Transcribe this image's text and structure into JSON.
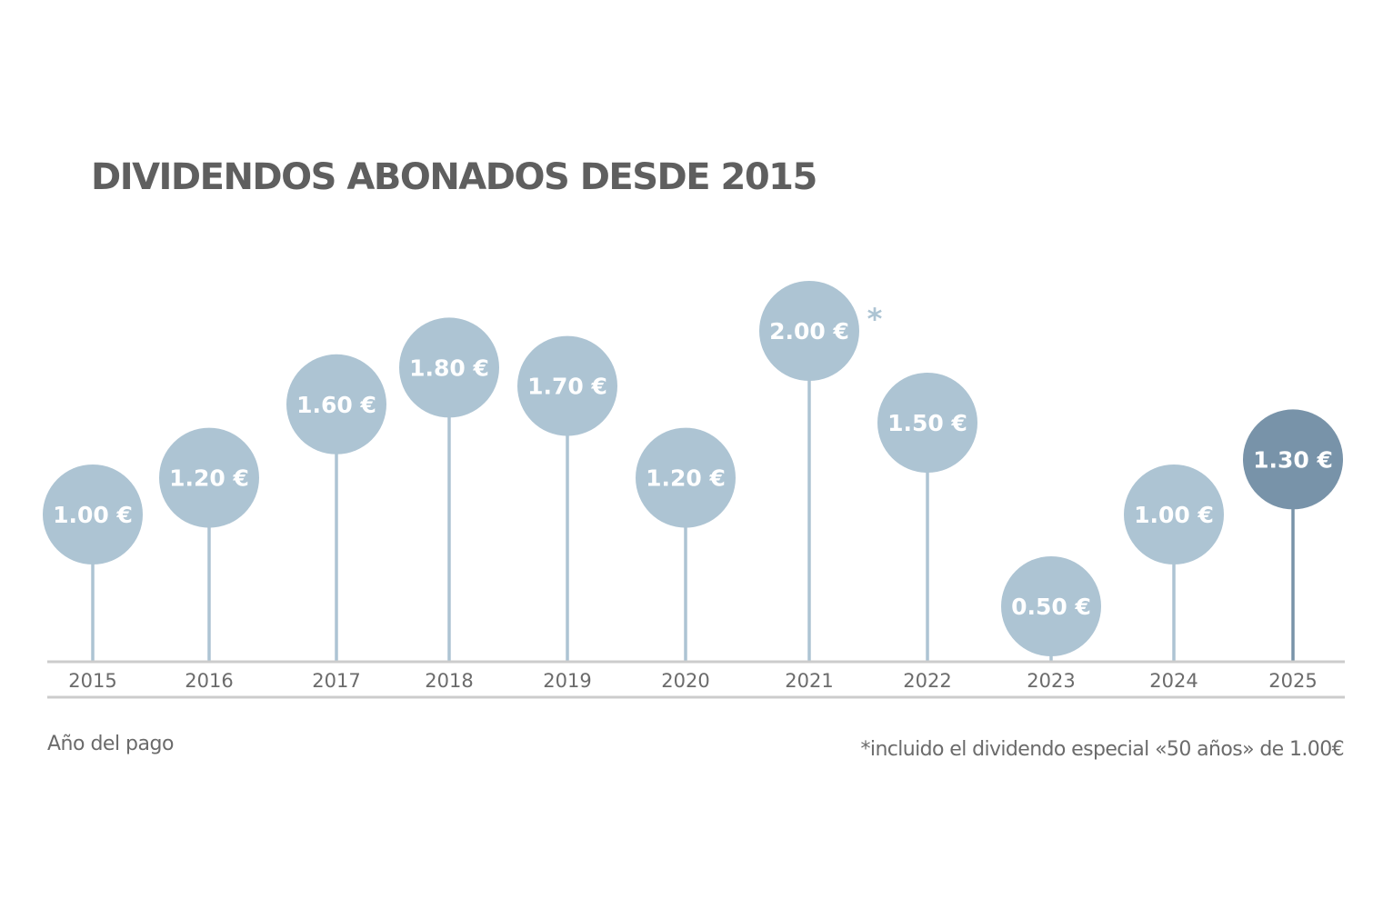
{
  "colors": {
    "bubble": "#adc4d3",
    "bubble_highlight": "#7893a9",
    "axis": "#cccccc",
    "text_dark": "#5f5f5f",
    "text_gray": "#6b6b6b",
    "asterisk": "#adc4d3"
  },
  "chart_data": {
    "type": "scatter",
    "title": "DIVIDENDOS ABONADOS DESDE 2015",
    "xlabel": "Año del pago",
    "ylabel": "",
    "categories": [
      "2015",
      "2016",
      "2017",
      "2018",
      "2019",
      "2020",
      "2021",
      "2022",
      "2023",
      "2024",
      "2025"
    ],
    "values": [
      1.0,
      1.2,
      1.6,
      1.8,
      1.7,
      1.2,
      2.0,
      1.5,
      0.5,
      1.0,
      1.3
    ],
    "value_labels": [
      "1.00 €",
      "1.20 €",
      "1.60 €",
      "1.80 €",
      "1.70 €",
      "1.20 €",
      "2.00 €",
      "1.50 €",
      "0.50 €",
      "1.00 €",
      "1.30 €"
    ],
    "highlight_category": "2025",
    "marker_category": "2021",
    "marker_symbol": "*",
    "footnote": "*incluido el dividendo especial «50 años» de 1.00€",
    "grid": false
  }
}
